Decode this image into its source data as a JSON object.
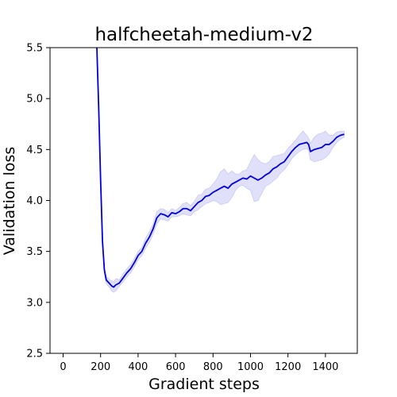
{
  "chart_data": {
    "type": "line",
    "title": "halfcheetah-medium-v2",
    "xlabel": "Gradient steps",
    "ylabel": "Validation loss",
    "xlim": [
      -70,
      1570
    ],
    "ylim": [
      2.5,
      5.5
    ],
    "xticks": [
      0,
      200,
      400,
      600,
      800,
      1000,
      1200,
      1400
    ],
    "xtick_labels": [
      "0",
      "200",
      "400",
      "600",
      "800",
      "1000",
      "1200",
      "1400"
    ],
    "yticks": [
      2.5,
      3.0,
      3.5,
      4.0,
      4.5,
      5.0,
      5.5
    ],
    "ytick_labels": [
      "2.5",
      "3.0",
      "3.5",
      "4.0",
      "4.5",
      "5.0",
      "5.5"
    ],
    "grid": false,
    "colors": {
      "line": "#0000dd",
      "band": "#e0e0fa",
      "band_edge": "#c8c8f2"
    },
    "series": [
      {
        "x": [
          180,
          190,
          200,
          210,
          220,
          230,
          240,
          250,
          260,
          270,
          280,
          290,
          300,
          320,
          340,
          360,
          380,
          400,
          420,
          440,
          460,
          480,
          500,
          520,
          540,
          560,
          580,
          600,
          620,
          640,
          660,
          680,
          700,
          720,
          740,
          760,
          780,
          800,
          820,
          840,
          860,
          880,
          900,
          920,
          940,
          960,
          980,
          1000,
          1020,
          1040,
          1060,
          1080,
          1100,
          1120,
          1140,
          1160,
          1180,
          1200,
          1220,
          1240,
          1260,
          1280,
          1300,
          1310,
          1320,
          1340,
          1360,
          1380,
          1400,
          1420,
          1440,
          1460,
          1480,
          1500
        ],
        "values": [
          5.5,
          4.9,
          4.2,
          3.6,
          3.32,
          3.22,
          3.2,
          3.18,
          3.16,
          3.15,
          3.17,
          3.18,
          3.19,
          3.24,
          3.29,
          3.33,
          3.39,
          3.46,
          3.5,
          3.58,
          3.64,
          3.72,
          3.83,
          3.87,
          3.86,
          3.84,
          3.88,
          3.87,
          3.89,
          3.92,
          3.92,
          3.9,
          3.94,
          3.98,
          4.0,
          4.04,
          4.05,
          4.08,
          4.1,
          4.12,
          4.14,
          4.12,
          4.16,
          4.18,
          4.2,
          4.22,
          4.21,
          4.24,
          4.22,
          4.2,
          4.22,
          4.25,
          4.27,
          4.31,
          4.33,
          4.36,
          4.38,
          4.43,
          4.48,
          4.52,
          4.55,
          4.56,
          4.57,
          4.55,
          4.48,
          4.5,
          4.51,
          4.52,
          4.55,
          4.55,
          4.58,
          4.62,
          4.64,
          4.65
        ],
        "lower": [
          5.5,
          4.88,
          4.17,
          3.57,
          3.29,
          3.19,
          3.16,
          3.14,
          3.11,
          3.1,
          3.11,
          3.13,
          3.16,
          3.2,
          3.25,
          3.29,
          3.35,
          3.42,
          3.46,
          3.53,
          3.59,
          3.67,
          3.77,
          3.82,
          3.81,
          3.8,
          3.84,
          3.84,
          3.85,
          3.87,
          3.86,
          3.85,
          3.89,
          3.91,
          3.94,
          3.97,
          3.98,
          4.0,
          3.99,
          3.96,
          3.97,
          3.98,
          4.03,
          4.1,
          4.14,
          4.15,
          4.12,
          4.1,
          3.99,
          4.0,
          4.07,
          4.14,
          4.16,
          4.19,
          4.22,
          4.27,
          4.3,
          4.35,
          4.41,
          4.45,
          4.48,
          4.5,
          4.51,
          4.49,
          4.4,
          4.38,
          4.39,
          4.4,
          4.42,
          4.46,
          4.52,
          4.57,
          4.6,
          4.62
        ],
        "upper": [
          5.5,
          4.92,
          4.23,
          3.63,
          3.35,
          3.25,
          3.24,
          3.22,
          3.21,
          3.2,
          3.23,
          3.23,
          3.22,
          3.28,
          3.33,
          3.37,
          3.43,
          3.5,
          3.54,
          3.63,
          3.69,
          3.77,
          3.89,
          3.92,
          3.91,
          3.88,
          3.92,
          3.9,
          3.93,
          3.97,
          3.98,
          3.95,
          3.99,
          4.05,
          4.06,
          4.11,
          4.12,
          4.16,
          4.21,
          4.28,
          4.31,
          4.26,
          4.29,
          4.26,
          4.26,
          4.29,
          4.3,
          4.38,
          4.45,
          4.4,
          4.37,
          4.36,
          4.38,
          4.43,
          4.44,
          4.45,
          4.46,
          4.51,
          4.55,
          4.59,
          4.64,
          4.68,
          4.64,
          4.61,
          4.56,
          4.62,
          4.65,
          4.66,
          4.68,
          4.64,
          4.64,
          4.67,
          4.68,
          4.68
        ]
      }
    ]
  }
}
